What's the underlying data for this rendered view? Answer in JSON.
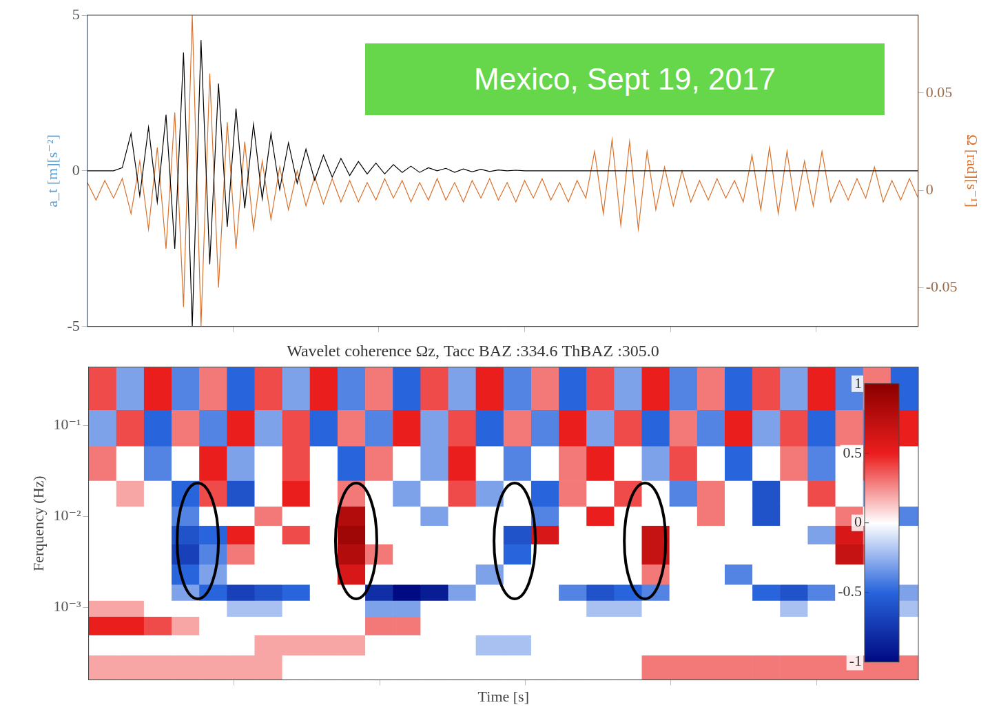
{
  "chart_data": [
    {
      "type": "line",
      "annotation": "Mexico, Sept 19, 2017",
      "ylabel": "a_t [m][s⁻²]",
      "y2label": "Ω [rad][s⁻¹]",
      "xlim": [
        0,
        5700
      ],
      "xticks": [
        1000,
        2000,
        3000,
        4000,
        5000
      ],
      "ylim": [
        -5,
        5
      ],
      "yticks": [
        -5,
        0,
        5
      ],
      "y2lim": [
        -0.07,
        0.09
      ],
      "y2ticks": [
        -0.05,
        0,
        0.05
      ],
      "grid": false,
      "tick_labels": "y",
      "x": [
        0,
        60,
        120,
        180,
        240,
        300,
        360,
        420,
        480,
        540,
        600,
        660,
        720,
        780,
        840,
        900,
        960,
        1020,
        1080,
        1140,
        1200,
        1260,
        1320,
        1380,
        1440,
        1500,
        1560,
        1620,
        1680,
        1740,
        1800,
        1860,
        1920,
        1980,
        2040,
        2100,
        2160,
        2220,
        2280,
        2340,
        2400,
        2460,
        2520,
        2580,
        2640,
        2700,
        2760,
        2820,
        2880,
        2940,
        3000,
        3060,
        3120,
        3180,
        3240,
        3300,
        3360,
        3420,
        3480,
        3540,
        3600,
        3660,
        3720,
        3780,
        3840,
        3900,
        3960,
        4020,
        4080,
        4140,
        4200,
        4260,
        4320,
        4380,
        4440,
        4500,
        4560,
        4620,
        4680,
        4740,
        4800,
        4860,
        4920,
        4980,
        5040,
        5100,
        5160,
        5220,
        5280,
        5340,
        5400,
        5460,
        5520,
        5580,
        5640,
        5700
      ],
      "series": [
        {
          "color": "#000000",
          "axis": "y",
          "values": [
            0,
            0,
            0,
            0,
            0.1,
            1.2,
            -0.8,
            1.4,
            -1,
            1.8,
            -2.5,
            3.8,
            -5,
            4.2,
            -3,
            2.8,
            -1.8,
            2,
            -1.2,
            1.5,
            -0.9,
            1.2,
            -0.6,
            0.9,
            -0.4,
            0.7,
            -0.3,
            0.5,
            -0.2,
            0.4,
            -0.15,
            0.3,
            -0.1,
            0.25,
            -0.1,
            0.2,
            -0.05,
            0.15,
            -0.05,
            0.1,
            0,
            0.08,
            -0.05,
            0.06,
            -0.03,
            0.05,
            -0.02,
            0.03,
            0,
            0.02,
            0,
            0,
            0,
            0,
            0,
            0,
            0,
            0,
            0,
            0,
            0,
            0,
            0,
            0,
            0,
            0,
            0,
            0,
            0,
            0,
            0,
            0,
            0,
            0,
            0,
            0,
            0,
            0,
            0,
            0,
            0,
            0,
            0,
            0,
            0,
            0,
            0,
            0,
            0,
            0,
            0,
            0,
            0,
            0,
            0,
            0
          ]
        },
        {
          "color": "#d9712b",
          "axis": "y2",
          "values": [
            0.004,
            -0.005,
            0.005,
            -0.004,
            0.006,
            -0.012,
            0.015,
            -0.02,
            0.022,
            -0.03,
            0.04,
            -0.06,
            0.09,
            -0.07,
            0.06,
            -0.05,
            0.035,
            -0.03,
            0.025,
            -0.02,
            0.015,
            -0.015,
            0.012,
            -0.01,
            0.01,
            -0.008,
            0.007,
            -0.007,
            0.006,
            -0.006,
            0.005,
            -0.006,
            0.004,
            -0.005,
            0.006,
            -0.004,
            0.005,
            -0.006,
            0.004,
            -0.005,
            0.006,
            -0.005,
            0.004,
            -0.006,
            0.005,
            -0.004,
            0.006,
            -0.005,
            0.004,
            -0.006,
            0.005,
            -0.004,
            0.006,
            -0.005,
            0.004,
            -0.006,
            0.005,
            -0.004,
            0.02,
            -0.012,
            0.026,
            -0.018,
            0.025,
            -0.02,
            0.02,
            -0.01,
            0.012,
            -0.008,
            0.01,
            -0.006,
            0.005,
            -0.005,
            0.006,
            -0.004,
            0.005,
            -0.006,
            0.018,
            -0.01,
            0.022,
            -0.012,
            0.02,
            -0.01,
            0.015,
            -0.008,
            0.02,
            -0.006,
            0.005,
            -0.005,
            0.006,
            -0.004,
            0.012,
            -0.006,
            0.005,
            -0.005,
            0.006,
            -0.004
          ]
        }
      ]
    },
    {
      "type": "heatmap",
      "title": "Wavelet coherence Ωz, Tacc BAZ :334.6 ThBAZ :305.0",
      "xlabel": "Time [s]",
      "ylabel": "Ferquency (Hz)",
      "log": "y",
      "grid": false,
      "tick_labels": "y",
      "xlim": [
        0,
        5700
      ],
      "xticks": [
        1000,
        2000,
        3000,
        4000,
        5000
      ],
      "ylim": [
        0.00016,
        0.44
      ],
      "yticks": [
        {
          "value": 0.001,
          "label": "10⁻³"
        },
        {
          "value": 0.01,
          "label": "10⁻²"
        },
        {
          "value": 0.1,
          "label": "10⁻¹"
        }
      ],
      "x_edges": [
        0,
        190,
        380,
        570,
        760,
        950,
        1140,
        1330,
        1520,
        1710,
        1900,
        2090,
        2280,
        2470,
        2660,
        2850,
        3040,
        3230,
        3420,
        3610,
        3800,
        3990,
        4180,
        4370,
        4560,
        4750,
        4940,
        5130,
        5320,
        5510,
        5700
      ],
      "y_edges": [
        0.00016,
        0.0003,
        0.0005,
        0.0008,
        0.0012,
        0.0018,
        0.003,
        0.005,
        0.008,
        0.013,
        0.025,
        0.06,
        0.15,
        0.44
      ],
      "cells": [
        [
          0.2,
          0.2,
          0.2,
          0.2,
          0.2,
          0.2,
          0.2,
          0,
          0,
          0,
          0,
          0,
          0,
          0,
          0,
          0,
          0,
          0,
          0,
          0,
          0.3,
          0.3,
          0.3,
          0.3,
          0.3,
          0.3,
          0.3,
          0.3,
          0.3,
          0.3
        ],
        [
          0,
          0,
          0,
          0,
          0,
          0,
          0.2,
          0.2,
          0.2,
          0.2,
          0,
          0,
          0,
          0,
          -0.2,
          -0.2,
          0,
          0,
          0,
          0,
          0,
          0,
          0,
          0,
          0,
          0,
          0,
          0,
          0,
          0
        ],
        [
          0.5,
          0.5,
          0.4,
          0.2,
          0,
          0,
          0,
          0,
          0,
          0,
          0.3,
          0.3,
          0,
          0,
          0,
          0,
          0,
          0,
          0,
          0,
          0,
          0,
          0,
          0,
          0,
          0,
          0,
          0,
          0,
          0
        ],
        [
          0.2,
          0.2,
          0,
          0,
          0,
          -0.2,
          -0.2,
          0,
          0,
          0,
          -0.3,
          -0.3,
          0,
          0,
          0,
          0,
          0,
          0,
          -0.2,
          -0.2,
          0,
          0,
          0,
          0,
          0,
          -0.2,
          0,
          0,
          0,
          -0.2
        ],
        [
          0,
          0,
          0,
          -0.3,
          -0.5,
          -0.7,
          -0.6,
          -0.5,
          0,
          0,
          -0.8,
          -1,
          -0.9,
          -0.3,
          0,
          0,
          0,
          -0.4,
          -0.6,
          -0.5,
          -0.4,
          0,
          0,
          0,
          -0.5,
          -0.6,
          -0.4,
          0,
          0,
          -0.3
        ],
        [
          0,
          0,
          0,
          -0.5,
          -0.3,
          0,
          0,
          0,
          0,
          0.6,
          0,
          0,
          0,
          0,
          -0.3,
          0,
          0,
          0,
          0,
          0,
          0.3,
          0,
          0,
          -0.4,
          0,
          0,
          0,
          0,
          0,
          0
        ],
        [
          0,
          0,
          0,
          -0.7,
          -0.4,
          0.3,
          0,
          0,
          0,
          0.8,
          0.3,
          0,
          0,
          0,
          0,
          -0.5,
          0,
          0,
          0,
          0,
          0.7,
          0,
          0,
          0,
          0,
          0,
          0,
          0.7,
          0.4,
          0
        ],
        [
          0,
          0,
          0,
          -0.6,
          -0.5,
          0.5,
          0,
          0.4,
          0,
          0.9,
          0,
          0,
          0,
          0,
          0,
          -0.6,
          0.6,
          0,
          0,
          0,
          0.7,
          0,
          0,
          0,
          0,
          0,
          -0.3,
          0.6,
          0.3,
          0
        ],
        [
          0,
          0,
          0,
          -0.4,
          0,
          0,
          0.3,
          0,
          0,
          0.8,
          0,
          0,
          -0.3,
          0,
          0,
          0,
          -0.4,
          0,
          0.5,
          0,
          0,
          0,
          0.3,
          0,
          -0.6,
          0,
          0,
          0.3,
          0,
          -0.4
        ],
        [
          0,
          0.2,
          0,
          -0.5,
          0.4,
          -0.6,
          0,
          0.5,
          0,
          0.3,
          0,
          -0.3,
          0,
          0.4,
          -0.3,
          0,
          -0.5,
          0.3,
          0,
          0.4,
          0,
          -0.4,
          0.3,
          0,
          -0.6,
          0,
          0.4,
          0,
          -0.3,
          0
        ],
        [
          0.3,
          0,
          -0.4,
          0,
          0.5,
          -0.3,
          0,
          0.4,
          0,
          -0.5,
          0.3,
          0,
          -0.3,
          0.5,
          0,
          -0.4,
          0,
          0.3,
          0.5,
          0,
          -0.3,
          0.4,
          0,
          -0.5,
          0,
          0.3,
          -0.4,
          0,
          0.4,
          0
        ],
        [
          -0.3,
          0.4,
          -0.5,
          0.3,
          -0.4,
          0.5,
          -0.3,
          0.4,
          -0.5,
          0.3,
          -0.4,
          0.5,
          -0.3,
          0.4,
          -0.5,
          0.3,
          -0.4,
          0.5,
          -0.3,
          0.4,
          -0.5,
          0.3,
          -0.4,
          0.5,
          -0.3,
          0.4,
          -0.5,
          0.3,
          -0.4,
          0.5
        ],
        [
          0.4,
          -0.3,
          0.5,
          -0.4,
          0.3,
          -0.5,
          0.4,
          -0.3,
          0.5,
          -0.4,
          0.3,
          -0.5,
          0.4,
          -0.3,
          0.5,
          -0.4,
          0.3,
          -0.5,
          0.4,
          -0.3,
          0.5,
          -0.4,
          0.3,
          -0.5,
          0.4,
          -0.3,
          0.5,
          -0.4,
          0.3,
          -0.5
        ]
      ],
      "colorbar": {
        "range": [
          -1,
          1
        ],
        "ticks": [
          -1,
          -0.5,
          0,
          0.5,
          1
        ]
      },
      "highlights": [
        {
          "time": 750,
          "frequency": 0.0054
        },
        {
          "time": 1838,
          "frequency": 0.0054
        },
        {
          "time": 2927,
          "frequency": 0.0054
        },
        {
          "time": 3822,
          "frequency": 0.0054
        }
      ]
    }
  ]
}
